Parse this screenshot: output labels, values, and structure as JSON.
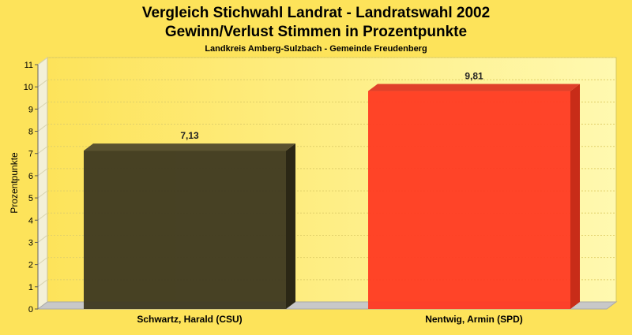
{
  "chart_data": {
    "type": "bar",
    "title": "Vergleich Stichwahl Landrat - Landratswahl 2002",
    "subtitle": "Gewinn/Verlust Stimmen in Prozentpunkte",
    "caption": "Landkreis Amberg-Sulzbach - Gemeinde Freudenberg",
    "xlabel": "",
    "ylabel": "Prozentpunkte",
    "ylim": [
      0,
      11
    ],
    "yticks": [
      "0",
      "1",
      "2",
      "3",
      "4",
      "5",
      "6",
      "7",
      "8",
      "9",
      "10",
      "11"
    ],
    "grid": true,
    "categories": [
      "Schwartz, Harald (CSU)",
      "Nentwig, Armin (SPD)"
    ],
    "values": [
      7.13,
      9.81
    ],
    "value_labels": [
      "7,13",
      "9,81"
    ],
    "colors": [
      "#3d3820",
      "#ff3a22"
    ],
    "side_colors": [
      "#2b2715",
      "#c82c18"
    ],
    "top_colors": [
      "#5a5230",
      "#e0402a"
    ]
  }
}
